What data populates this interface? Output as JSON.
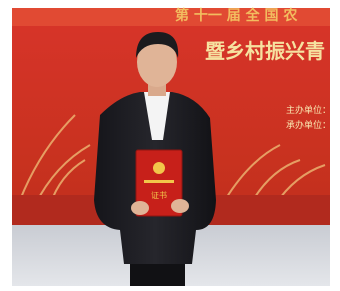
{
  "banner": {
    "headline": "暨乡村振兴青",
    "organizer": "主办单位：",
    "co_organizer": "承办单位："
  },
  "certificate": {
    "label": "证书"
  }
}
